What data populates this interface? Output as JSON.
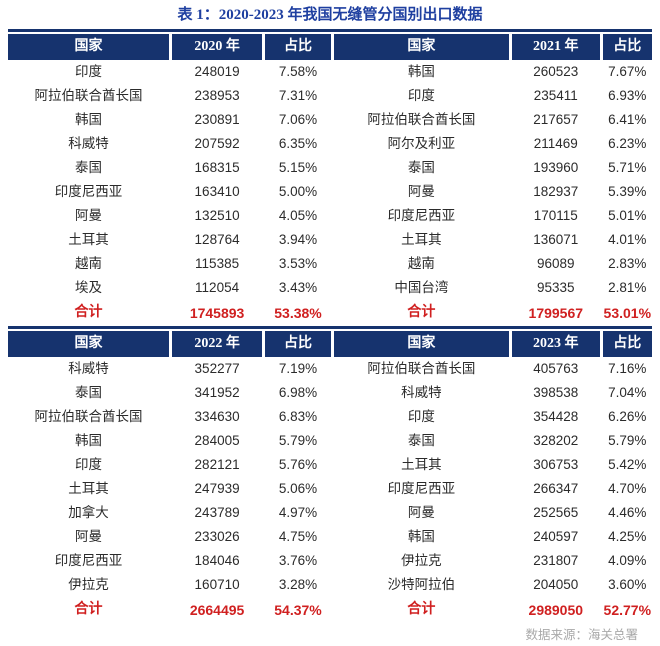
{
  "title": "表 1：2020-2023 年我国无缝管分国别出口数据",
  "footer": "数据来源：海关总署",
  "colors": {
    "header_bg": "#16336e",
    "header_text": "#ffffff",
    "title_text": "#1e3fa0",
    "body_text": "#2b2b2b",
    "total_text": "#d02020",
    "source_text": "#a9a9a9"
  },
  "chart_data": {
    "type": "table",
    "title": "表 1：2020-2023 年我国无缝管分国别出口数据",
    "source": "数据来源：海关总署",
    "header": {
      "country": "国家",
      "share": "占比"
    },
    "total_label": "合计",
    "layout": {
      "blocks": [
        [
          0,
          1
        ],
        [
          2,
          3
        ]
      ],
      "note": "two year-columns per header block"
    },
    "years": [
      {
        "label": "2020 年",
        "rows": [
          {
            "country": "印度",
            "value": "248019",
            "share": "7.58%"
          },
          {
            "country": "阿拉伯联合酋长国",
            "value": "238953",
            "share": "7.31%"
          },
          {
            "country": "韩国",
            "value": "230891",
            "share": "7.06%"
          },
          {
            "country": "科威特",
            "value": "207592",
            "share": "6.35%"
          },
          {
            "country": "泰国",
            "value": "168315",
            "share": "5.15%"
          },
          {
            "country": "印度尼西亚",
            "value": "163410",
            "share": "5.00%"
          },
          {
            "country": "阿曼",
            "value": "132510",
            "share": "4.05%"
          },
          {
            "country": "土耳其",
            "value": "128764",
            "share": "3.94%"
          },
          {
            "country": "越南",
            "value": "115385",
            "share": "3.53%"
          },
          {
            "country": "埃及",
            "value": "112054",
            "share": "3.43%"
          }
        ],
        "total": {
          "value": "1745893",
          "share": "53.38%"
        }
      },
      {
        "label": "2021 年",
        "rows": [
          {
            "country": "韩国",
            "value": "260523",
            "share": "7.67%"
          },
          {
            "country": "印度",
            "value": "235411",
            "share": "6.93%"
          },
          {
            "country": "阿拉伯联合酋长国",
            "value": "217657",
            "share": "6.41%"
          },
          {
            "country": "阿尔及利亚",
            "value": "211469",
            "share": "6.23%"
          },
          {
            "country": "泰国",
            "value": "193960",
            "share": "5.71%"
          },
          {
            "country": "阿曼",
            "value": "182937",
            "share": "5.39%"
          },
          {
            "country": "印度尼西亚",
            "value": "170115",
            "share": "5.01%"
          },
          {
            "country": "土耳其",
            "value": "136071",
            "share": "4.01%"
          },
          {
            "country": "越南",
            "value": "96089",
            "share": "2.83%"
          },
          {
            "country": "中国台湾",
            "value": "95335",
            "share": "2.81%"
          }
        ],
        "total": {
          "value": "1799567",
          "share": "53.01%"
        }
      },
      {
        "label": "2022 年",
        "rows": [
          {
            "country": "科威特",
            "value": "352277",
            "share": "7.19%"
          },
          {
            "country": "泰国",
            "value": "341952",
            "share": "6.98%"
          },
          {
            "country": "阿拉伯联合酋长国",
            "value": "334630",
            "share": "6.83%"
          },
          {
            "country": "韩国",
            "value": "284005",
            "share": "5.79%"
          },
          {
            "country": "印度",
            "value": "282121",
            "share": "5.76%"
          },
          {
            "country": "土耳其",
            "value": "247939",
            "share": "5.06%"
          },
          {
            "country": "加拿大",
            "value": "243789",
            "share": "4.97%"
          },
          {
            "country": "阿曼",
            "value": "233026",
            "share": "4.75%"
          },
          {
            "country": "印度尼西亚",
            "value": "184046",
            "share": "3.76%"
          },
          {
            "country": "伊拉克",
            "value": "160710",
            "share": "3.28%"
          }
        ],
        "total": {
          "value": "2664495",
          "share": "54.37%"
        }
      },
      {
        "label": "2023 年",
        "rows": [
          {
            "country": "阿拉伯联合酋长国",
            "value": "405763",
            "share": "7.16%"
          },
          {
            "country": "科威特",
            "value": "398538",
            "share": "7.04%"
          },
          {
            "country": "印度",
            "value": "354428",
            "share": "6.26%"
          },
          {
            "country": "泰国",
            "value": "328202",
            "share": "5.79%"
          },
          {
            "country": "土耳其",
            "value": "306753",
            "share": "5.42%"
          },
          {
            "country": "印度尼西亚",
            "value": "266347",
            "share": "4.70%"
          },
          {
            "country": "阿曼",
            "value": "252565",
            "share": "4.46%"
          },
          {
            "country": "韩国",
            "value": "240597",
            "share": "4.25%"
          },
          {
            "country": "伊拉克",
            "value": "231807",
            "share": "4.09%"
          },
          {
            "country": "沙特阿拉伯",
            "value": "204050",
            "share": "3.60%"
          }
        ],
        "total": {
          "value": "2989050",
          "share": "52.77%"
        }
      }
    ]
  }
}
